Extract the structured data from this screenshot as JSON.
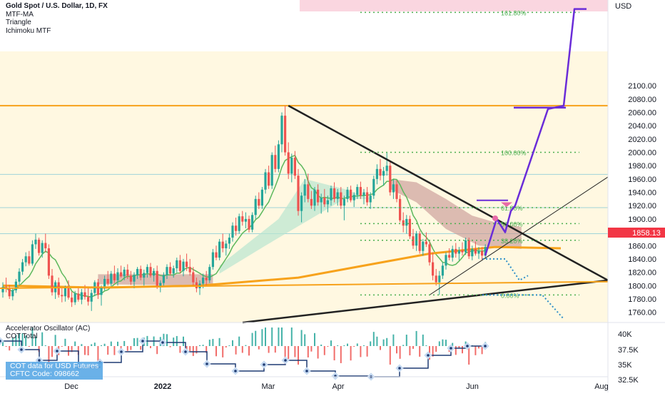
{
  "symbol": {
    "title": "Gold Spot / U.S. Dollar, 1D, FX",
    "indicators": [
      "MTF-MA",
      "Triangle",
      "Ichimoku MTF"
    ]
  },
  "sub_pane": {
    "indicators": [
      "Accelerator Oscillator (AC)",
      "COT Total"
    ],
    "cot_note": [
      "COT data for USD Futures",
      "CFTC Code: 098662"
    ],
    "axis_ticks": [
      "40K",
      "37.5K",
      "35K",
      "32.5K"
    ]
  },
  "colors": {
    "candle_up": "#26a69a",
    "candle_down": "#ef5350",
    "price_badge": "#f23645",
    "orange_line": "#f7a21b",
    "trend_line": "#222222",
    "projection": "#6a2cd8",
    "fib": "#4caf50",
    "zone_fill": "#fff8e1",
    "cloud_fill": "#c99a96",
    "dotted_blue": "#2f8fc9"
  },
  "chart_data": {
    "type": "candlestick",
    "title": "Gold Spot / U.S. Dollar, 1D, FX",
    "currency_label": "USD",
    "current_price": "1858.13",
    "ylim": [
      1750,
      2220
    ],
    "y_ticks": [
      "2100.00",
      "2080.00",
      "2060.00",
      "2040.00",
      "2020.00",
      "2000.00",
      "1980.00",
      "1960.00",
      "1940.00",
      "1920.00",
      "1900.00",
      "1880.00",
      "1860.00",
      "1840.00",
      "1820.00",
      "1800.00",
      "1780.00",
      "1760.00"
    ],
    "x_ticks": [
      "Dec",
      "2022",
      "Mar",
      "Apr",
      "Jun",
      "Aug"
    ],
    "x_tick_bold": [
      false,
      true,
      false,
      false,
      false,
      false
    ],
    "fib_levels": [
      {
        "label": "161.80%",
        "price": 2210
      },
      {
        "label": "100.00%",
        "price": 2000
      },
      {
        "label": "61.80%",
        "price": 1917
      },
      {
        "label": "50.00%",
        "price": 1893
      },
      {
        "label": "38.20%",
        "price": 1868
      },
      {
        "label": "0.00%",
        "price": 1786
      }
    ],
    "horizontal_levels": [
      2070,
      1967,
      1917,
      1878
    ],
    "triangle": {
      "upper_start": {
        "date_index": 87,
        "price": 2070
      },
      "upper_end": {
        "date_index": 197,
        "price": 1808
      },
      "lower_start": {
        "date_index": 0,
        "price": 1748
      },
      "lower_end": {
        "date_index": 197,
        "price": 1808
      }
    },
    "projection_path_prices": [
      1845,
      1900,
      1880,
      1912,
      1920,
      2065,
      2070,
      2215,
      2215
    ],
    "candles": [
      [
        1790,
        1805,
        1782,
        1798
      ],
      [
        1798,
        1812,
        1790,
        1795
      ],
      [
        1795,
        1801,
        1780,
        1784
      ],
      [
        1784,
        1797,
        1778,
        1793
      ],
      [
        1793,
        1810,
        1789,
        1806
      ],
      [
        1806,
        1826,
        1800,
        1821
      ],
      [
        1821,
        1840,
        1816,
        1835
      ],
      [
        1835,
        1850,
        1829,
        1844
      ],
      [
        1844,
        1852,
        1830,
        1833
      ],
      [
        1833,
        1868,
        1830,
        1862
      ],
      [
        1862,
        1878,
        1855,
        1869
      ],
      [
        1869,
        1872,
        1845,
        1849
      ],
      [
        1849,
        1868,
        1842,
        1864
      ],
      [
        1864,
        1878,
        1850,
        1856
      ],
      [
        1856,
        1862,
        1810,
        1815
      ],
      [
        1815,
        1825,
        1785,
        1790
      ],
      [
        1790,
        1808,
        1780,
        1805
      ],
      [
        1805,
        1812,
        1782,
        1786
      ],
      [
        1786,
        1796,
        1775,
        1784
      ],
      [
        1784,
        1800,
        1776,
        1797
      ],
      [
        1797,
        1808,
        1779,
        1782
      ],
      [
        1782,
        1791,
        1768,
        1775
      ],
      [
        1775,
        1792,
        1771,
        1788
      ],
      [
        1788,
        1796,
        1776,
        1779
      ],
      [
        1779,
        1795,
        1772,
        1790
      ],
      [
        1790,
        1801,
        1779,
        1783
      ],
      [
        1783,
        1796,
        1770,
        1776
      ],
      [
        1776,
        1794,
        1762,
        1789
      ],
      [
        1789,
        1808,
        1784,
        1805
      ],
      [
        1805,
        1810,
        1780,
        1786
      ],
      [
        1786,
        1800,
        1770,
        1797
      ],
      [
        1797,
        1815,
        1793,
        1810
      ],
      [
        1810,
        1822,
        1800,
        1803
      ],
      [
        1803,
        1822,
        1798,
        1818
      ],
      [
        1818,
        1830,
        1804,
        1808
      ],
      [
        1808,
        1826,
        1800,
        1820
      ],
      [
        1820,
        1830,
        1812,
        1814
      ],
      [
        1814,
        1828,
        1808,
        1824
      ],
      [
        1824,
        1832,
        1810,
        1815
      ],
      [
        1815,
        1822,
        1801,
        1806
      ],
      [
        1806,
        1820,
        1796,
        1816
      ],
      [
        1816,
        1828,
        1810,
        1825
      ],
      [
        1825,
        1830,
        1808,
        1812
      ],
      [
        1812,
        1824,
        1800,
        1819
      ],
      [
        1819,
        1832,
        1812,
        1828
      ],
      [
        1828,
        1834,
        1812,
        1815
      ],
      [
        1815,
        1826,
        1806,
        1822
      ],
      [
        1822,
        1830,
        1795,
        1798
      ],
      [
        1798,
        1808,
        1790,
        1804
      ],
      [
        1804,
        1820,
        1800,
        1816
      ],
      [
        1816,
        1832,
        1810,
        1828
      ],
      [
        1828,
        1835,
        1815,
        1818
      ],
      [
        1818,
        1830,
        1812,
        1826
      ],
      [
        1826,
        1842,
        1820,
        1838
      ],
      [
        1838,
        1846,
        1818,
        1822
      ],
      [
        1822,
        1840,
        1814,
        1836
      ],
      [
        1836,
        1848,
        1822,
        1828
      ],
      [
        1828,
        1840,
        1815,
        1820
      ],
      [
        1820,
        1828,
        1800,
        1805
      ],
      [
        1805,
        1812,
        1790,
        1796
      ],
      [
        1796,
        1808,
        1786,
        1803
      ],
      [
        1803,
        1818,
        1796,
        1812
      ],
      [
        1812,
        1822,
        1800,
        1808
      ],
      [
        1808,
        1832,
        1804,
        1828
      ],
      [
        1828,
        1855,
        1824,
        1850
      ],
      [
        1850,
        1860,
        1838,
        1842
      ],
      [
        1842,
        1870,
        1838,
        1866
      ],
      [
        1866,
        1878,
        1850,
        1856
      ],
      [
        1856,
        1868,
        1845,
        1863
      ],
      [
        1863,
        1878,
        1855,
        1872
      ],
      [
        1872,
        1895,
        1866,
        1890
      ],
      [
        1890,
        1902,
        1875,
        1882
      ],
      [
        1882,
        1908,
        1878,
        1904
      ],
      [
        1904,
        1912,
        1890,
        1896
      ],
      [
        1896,
        1910,
        1886,
        1900
      ],
      [
        1900,
        1905,
        1880,
        1884
      ],
      [
        1884,
        1910,
        1880,
        1906
      ],
      [
        1906,
        1935,
        1900,
        1930
      ],
      [
        1930,
        1940,
        1915,
        1920
      ],
      [
        1920,
        1948,
        1915,
        1944
      ],
      [
        1944,
        1975,
        1938,
        1970
      ],
      [
        1970,
        1980,
        1945,
        1950
      ],
      [
        1950,
        2000,
        1945,
        1996
      ],
      [
        1996,
        2010,
        1970,
        1975
      ],
      [
        1975,
        2018,
        1970,
        2012
      ],
      [
        2012,
        2060,
        2000,
        2055
      ],
      [
        2055,
        2070,
        1995,
        2000
      ],
      [
        2000,
        2015,
        1960,
        1968
      ],
      [
        1968,
        1998,
        1955,
        1992
      ],
      [
        1992,
        2002,
        1960,
        1965
      ],
      [
        1965,
        1975,
        1905,
        1912
      ],
      [
        1912,
        1940,
        1895,
        1935
      ],
      [
        1935,
        1960,
        1925,
        1952
      ],
      [
        1952,
        1968,
        1925,
        1930
      ],
      [
        1930,
        1942,
        1915,
        1920
      ],
      [
        1920,
        1948,
        1912,
        1944
      ],
      [
        1944,
        1952,
        1920,
        1925
      ],
      [
        1925,
        1938,
        1908,
        1932
      ],
      [
        1932,
        1945,
        1918,
        1922
      ],
      [
        1922,
        1935,
        1910,
        1928
      ],
      [
        1928,
        1950,
        1920,
        1946
      ],
      [
        1946,
        1955,
        1925,
        1930
      ],
      [
        1930,
        1945,
        1920,
        1940
      ],
      [
        1940,
        1948,
        1915,
        1920
      ],
      [
        1920,
        1935,
        1898,
        1930
      ],
      [
        1930,
        1948,
        1925,
        1944
      ],
      [
        1944,
        1950,
        1925,
        1928
      ],
      [
        1928,
        1940,
        1918,
        1936
      ],
      [
        1936,
        1952,
        1930,
        1948
      ],
      [
        1948,
        1956,
        1930,
        1935
      ],
      [
        1935,
        1945,
        1922,
        1940
      ],
      [
        1940,
        1948,
        1920,
        1925
      ],
      [
        1925,
        1940,
        1915,
        1935
      ],
      [
        1935,
        1965,
        1930,
        1960
      ],
      [
        1960,
        1982,
        1952,
        1975
      ],
      [
        1975,
        1990,
        1958,
        1965
      ],
      [
        1965,
        1978,
        1950,
        1972
      ],
      [
        1972,
        2000,
        1965,
        1980
      ],
      [
        1980,
        1985,
        1935,
        1940
      ],
      [
        1940,
        1960,
        1930,
        1952
      ],
      [
        1952,
        1958,
        1925,
        1930
      ],
      [
        1930,
        1936,
        1895,
        1898
      ],
      [
        1898,
        1910,
        1880,
        1890
      ],
      [
        1890,
        1906,
        1878,
        1900
      ],
      [
        1900,
        1905,
        1870,
        1874
      ],
      [
        1874,
        1885,
        1855,
        1860
      ],
      [
        1860,
        1882,
        1852,
        1878
      ],
      [
        1878,
        1882,
        1848,
        1852
      ],
      [
        1852,
        1870,
        1845,
        1866
      ],
      [
        1866,
        1880,
        1858,
        1862
      ],
      [
        1862,
        1866,
        1830,
        1835
      ],
      [
        1835,
        1850,
        1808,
        1815
      ],
      [
        1815,
        1825,
        1800,
        1805
      ],
      [
        1805,
        1822,
        1786,
        1815
      ],
      [
        1815,
        1835,
        1810,
        1830
      ],
      [
        1830,
        1850,
        1824,
        1846
      ],
      [
        1846,
        1856,
        1838,
        1842
      ],
      [
        1842,
        1860,
        1836,
        1855
      ],
      [
        1855,
        1864,
        1842,
        1848
      ],
      [
        1848,
        1858,
        1838,
        1853
      ],
      [
        1853,
        1865,
        1845,
        1850
      ],
      [
        1850,
        1872,
        1846,
        1868
      ],
      [
        1868,
        1872,
        1840,
        1844
      ],
      [
        1844,
        1860,
        1838,
        1855
      ],
      [
        1855,
        1866,
        1845,
        1848
      ],
      [
        1848,
        1858,
        1840,
        1852
      ],
      [
        1852,
        1858,
        1838,
        1845
      ],
      [
        1845,
        1862,
        1840,
        1858
      ]
    ]
  }
}
